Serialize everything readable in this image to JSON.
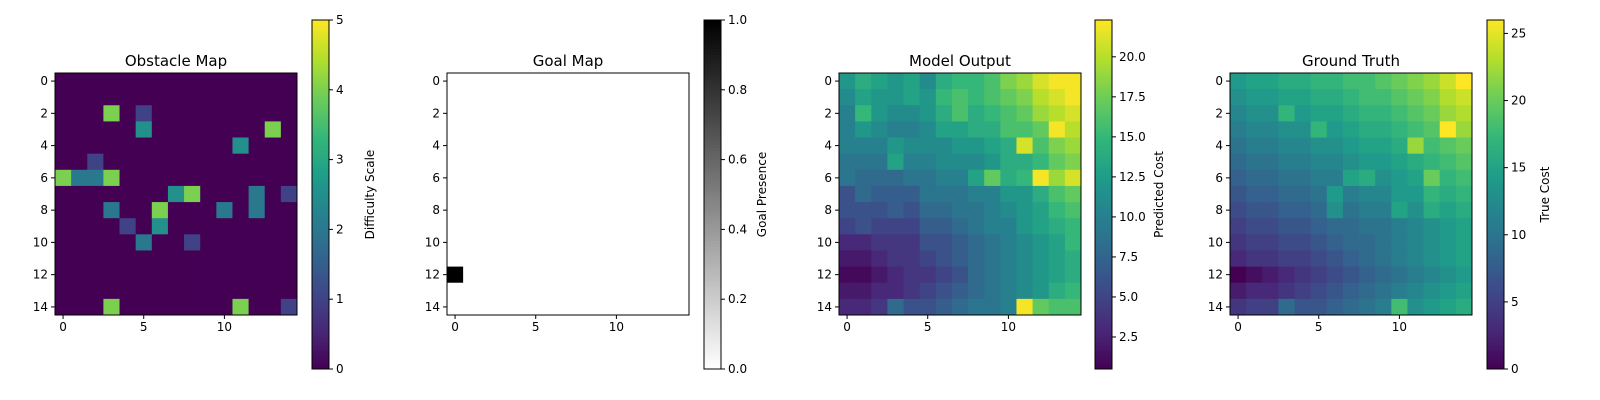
{
  "chart_data": [
    {
      "type": "heatmap",
      "title": "Obstacle Map",
      "colormap": "viridis",
      "colorbar_label": "Difficulty Scale",
      "value_range": [
        0,
        5
      ],
      "colorbar_ticks": [
        "0",
        "1",
        "2",
        "3",
        "4",
        "5"
      ],
      "x_ticks": [
        "0",
        "5",
        "10"
      ],
      "y_ticks": [
        "0",
        "2",
        "4",
        "6",
        "8",
        "10",
        "12",
        "14"
      ],
      "grid_size": 15,
      "grid": [
        [
          0,
          0,
          0,
          0,
          0,
          0,
          0,
          0,
          0,
          0,
          0,
          0,
          0,
          0,
          0
        ],
        [
          0,
          0,
          0,
          0,
          0,
          0,
          0,
          0,
          0,
          0,
          0,
          0,
          0,
          0,
          0
        ],
        [
          0,
          0,
          0,
          4,
          0,
          1,
          0,
          0,
          0,
          0,
          0,
          0,
          0,
          0,
          0
        ],
        [
          0,
          0,
          0,
          0,
          0,
          2.5,
          0,
          0,
          0,
          0,
          0,
          0,
          0,
          4,
          0
        ],
        [
          0,
          0,
          0,
          0,
          0,
          0,
          0,
          0,
          0,
          0,
          0,
          2.5,
          0,
          0,
          0
        ],
        [
          0,
          0,
          1,
          0,
          0,
          0,
          0,
          0,
          0,
          0,
          0,
          0,
          0,
          0,
          0
        ],
        [
          4,
          2,
          2,
          4,
          0,
          0,
          0,
          0,
          0,
          0,
          0,
          0,
          0,
          0,
          0
        ],
        [
          0,
          0,
          0,
          0,
          0,
          0,
          0,
          2.5,
          4,
          0,
          0,
          0,
          2,
          0,
          1
        ],
        [
          0,
          0,
          0,
          2,
          0,
          0,
          4,
          0,
          0,
          0,
          2,
          0,
          2,
          0,
          0
        ],
        [
          0,
          0,
          0,
          0,
          1,
          0,
          2.5,
          0,
          0,
          0,
          0,
          0,
          0,
          0,
          0
        ],
        [
          0,
          0,
          0,
          0,
          0,
          2,
          0,
          0,
          1,
          0,
          0,
          0,
          0,
          0,
          0
        ],
        [
          0,
          0,
          0,
          0,
          0,
          0,
          0,
          0,
          0,
          0,
          0,
          0,
          0,
          0,
          0
        ],
        [
          0,
          0,
          0,
          0,
          0,
          0,
          0,
          0,
          0,
          0,
          0,
          0,
          0,
          0,
          0
        ],
        [
          0,
          0,
          0,
          0,
          0,
          0,
          0,
          0,
          0,
          0,
          0,
          0,
          0,
          0,
          0
        ],
        [
          0,
          0,
          0,
          4,
          0,
          0,
          0,
          0,
          0,
          0,
          0,
          4,
          0,
          0,
          1
        ]
      ]
    },
    {
      "type": "heatmap",
      "title": "Goal Map",
      "colormap": "gray_r",
      "colorbar_label": "Goal Presence",
      "value_range": [
        0,
        1
      ],
      "colorbar_ticks": [
        "0.0",
        "0.2",
        "0.4",
        "0.6",
        "0.8",
        "1.0"
      ],
      "x_ticks": [
        "0",
        "5",
        "10"
      ],
      "y_ticks": [
        "0",
        "2",
        "4",
        "6",
        "8",
        "10",
        "12",
        "14"
      ],
      "grid_size": 15,
      "goal_cell": {
        "row": 12,
        "col": 0,
        "value": 1
      }
    },
    {
      "type": "heatmap",
      "title": "Model Output",
      "colormap": "viridis",
      "colorbar_label": "Predicted Cost",
      "value_range": [
        0.5,
        22.3
      ],
      "colorbar_ticks": [
        "2.5",
        "5.0",
        "7.5",
        "10.0",
        "12.5",
        "15.0",
        "17.5",
        "20.0"
      ],
      "x_ticks": [
        "0",
        "5",
        "10"
      ],
      "y_ticks": [
        "0",
        "2",
        "4",
        "6",
        "8",
        "10",
        "12",
        "14"
      ],
      "grid_size": 15,
      "grid": [
        [
          12,
          14,
          13,
          12,
          13,
          11,
          14,
          15,
          15,
          16,
          18,
          19,
          21,
          22,
          22
        ],
        [
          11,
          13,
          12,
          12,
          13,
          12,
          15,
          16,
          15,
          16,
          17,
          18,
          20,
          21,
          22
        ],
        [
          10,
          15,
          12,
          11,
          11,
          12,
          14,
          16,
          14,
          15,
          16,
          17,
          19,
          20,
          21
        ],
        [
          10,
          12,
          11,
          10,
          10,
          11,
          13,
          13,
          14,
          14,
          16,
          16,
          17,
          22,
          20
        ],
        [
          10,
          10,
          10,
          12,
          11,
          11,
          11,
          12,
          12,
          13,
          14,
          21,
          16,
          18,
          19
        ],
        [
          9,
          9,
          9,
          13,
          10,
          10,
          11,
          11,
          11,
          12,
          14,
          14,
          15,
          17,
          18
        ],
        [
          9,
          8,
          8,
          8,
          9,
          9,
          10,
          10,
          13,
          17,
          14,
          15,
          22,
          19,
          21
        ],
        [
          6,
          8,
          7,
          7,
          7,
          9,
          9,
          9,
          10,
          10,
          12,
          12,
          14,
          16,
          17
        ],
        [
          6,
          6,
          6,
          7,
          6,
          8,
          8,
          9,
          9,
          10,
          11,
          12,
          13,
          15,
          16
        ],
        [
          5,
          6,
          5,
          5,
          5,
          7,
          7,
          8,
          9,
          10,
          10,
          12,
          13,
          14,
          15
        ],
        [
          3,
          3,
          4,
          4,
          4,
          6,
          6,
          7,
          8,
          9,
          10,
          11,
          12,
          13,
          15
        ],
        [
          2,
          2,
          3,
          4,
          4,
          5,
          6,
          7,
          8,
          9,
          10,
          11,
          12,
          13,
          14
        ],
        [
          1,
          1,
          2,
          3,
          4,
          4,
          5,
          6,
          8,
          9,
          10,
          11,
          12,
          13,
          14
        ],
        [
          2,
          2,
          3,
          3,
          4,
          5,
          6,
          7,
          8,
          9,
          10,
          11,
          12,
          14,
          15
        ],
        [
          3,
          3,
          4,
          8,
          6,
          6,
          7,
          8,
          9,
          9,
          10,
          22,
          17,
          16,
          16
        ]
      ]
    },
    {
      "type": "heatmap",
      "title": "Ground Truth",
      "colormap": "viridis",
      "colorbar_label": "True Cost",
      "value_range": [
        0,
        26
      ],
      "colorbar_ticks": [
        "0",
        "5",
        "10",
        "15",
        "20",
        "25"
      ],
      "x_ticks": [
        "0",
        "5",
        "10"
      ],
      "y_ticks": [
        "0",
        "2",
        "4",
        "6",
        "8",
        "10",
        "12",
        "14"
      ],
      "grid_size": 15,
      "grid": [
        [
          14,
          15,
          15,
          16,
          16,
          17,
          17,
          18,
          18,
          19,
          20,
          21,
          22,
          24,
          26
        ],
        [
          13,
          14,
          14,
          15,
          15,
          16,
          16,
          17,
          18,
          18,
          19,
          20,
          21,
          23,
          24
        ],
        [
          12,
          13,
          13,
          17,
          14,
          15,
          15,
          16,
          17,
          17,
          18,
          19,
          20,
          22,
          23
        ],
        [
          11,
          12,
          12,
          13,
          13,
          17,
          14,
          15,
          16,
          16,
          17,
          18,
          19,
          26,
          22
        ],
        [
          10,
          11,
          11,
          12,
          12,
          13,
          13,
          14,
          15,
          15,
          16,
          22,
          18,
          19,
          20
        ],
        [
          9,
          10,
          10,
          11,
          11,
          12,
          12,
          13,
          14,
          14,
          15,
          16,
          17,
          18,
          19
        ],
        [
          8,
          9,
          9,
          10,
          10,
          11,
          11,
          15,
          16,
          13,
          14,
          15,
          20,
          17,
          18
        ],
        [
          7,
          8,
          8,
          9,
          9,
          10,
          14,
          11,
          12,
          12,
          14,
          14,
          17,
          16,
          17
        ],
        [
          6,
          7,
          7,
          8,
          8,
          9,
          13,
          10,
          11,
          11,
          15,
          13,
          16,
          15,
          16
        ],
        [
          5,
          6,
          6,
          7,
          7,
          8,
          9,
          9,
          10,
          10,
          11,
          12,
          13,
          14,
          15
        ],
        [
          4,
          5,
          5,
          6,
          6,
          7,
          8,
          9,
          9,
          10,
          11,
          12,
          13,
          14,
          15
        ],
        [
          3,
          4,
          4,
          5,
          5,
          6,
          7,
          8,
          9,
          10,
          11,
          12,
          13,
          14,
          15
        ],
        [
          0,
          1,
          2,
          3,
          4,
          5,
          6,
          7,
          8,
          9,
          10,
          11,
          12,
          13,
          14
        ],
        [
          2,
          3,
          3,
          4,
          5,
          6,
          7,
          8,
          9,
          10,
          11,
          12,
          13,
          14,
          15
        ],
        [
          4,
          5,
          5,
          9,
          7,
          7,
          8,
          9,
          10,
          11,
          18,
          13,
          14,
          15,
          16
        ]
      ]
    }
  ]
}
